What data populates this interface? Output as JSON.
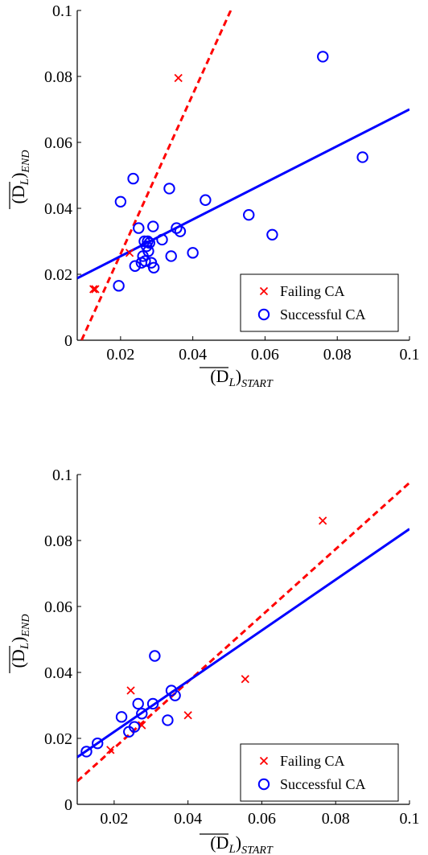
{
  "chart_data": [
    {
      "type": "scatter",
      "xlabel": "(D_L)_START",
      "ylabel": "(D_L)_END",
      "xlim": [
        0.008,
        0.1
      ],
      "ylim": [
        0,
        0.1
      ],
      "xticks": [
        0.02,
        0.04,
        0.06,
        0.08,
        0.1
      ],
      "xtick_labels": [
        "0.02",
        "0.04",
        "0.06",
        "0.08",
        "0.1"
      ],
      "yticks": [
        0,
        0.02,
        0.04,
        0.06,
        0.08,
        0.1
      ],
      "ytick_labels": [
        "0",
        "0.02",
        "0.04",
        "0.06",
        "0.08",
        "0.1"
      ],
      "legend_position": "bottom-right",
      "series": [
        {
          "name": "Failing CA",
          "marker": "x",
          "color": "#ff0000",
          "x": [
            0.0125,
            0.013,
            0.0225,
            0.036
          ],
          "y": [
            0.0155,
            0.0155,
            0.0265,
            0.0795
          ]
        },
        {
          "name": "Successful CA",
          "marker": "o",
          "color": "#0000ff",
          "x": [
            0.0195,
            0.02,
            0.0235,
            0.024,
            0.025,
            0.0258,
            0.0262,
            0.0266,
            0.0268,
            0.0272,
            0.0275,
            0.0277,
            0.028,
            0.0285,
            0.029,
            0.0292,
            0.0315,
            0.0335,
            0.034,
            0.0355,
            0.0365,
            0.04,
            0.0435,
            0.0555,
            0.062,
            0.076,
            0.087
          ],
          "y": [
            0.0165,
            0.042,
            0.049,
            0.0225,
            0.034,
            0.0235,
            0.0255,
            0.03,
            0.024,
            0.0285,
            0.03,
            0.027,
            0.0295,
            0.0235,
            0.0345,
            0.022,
            0.0305,
            0.046,
            0.0255,
            0.034,
            0.033,
            0.0265,
            0.0425,
            0.038,
            0.032,
            0.086,
            0.0555
          ]
        }
      ],
      "fit_lines": [
        {
          "series": "Failing CA",
          "style": "dashed",
          "color": "#ff0000",
          "x": [
            0.0092,
            0.0505
          ],
          "y": [
            0.0,
            0.1
          ]
        },
        {
          "series": "Successful CA",
          "style": "solid",
          "color": "#0000ff",
          "x": [
            0.008,
            0.1
          ],
          "y": [
            0.0188,
            0.07
          ]
        }
      ]
    },
    {
      "type": "scatter",
      "xlabel": "(D_L)_START",
      "ylabel": "(D_L)_END",
      "xlim": [
        0.01,
        0.1
      ],
      "ylim": [
        0,
        0.1
      ],
      "xticks": [
        0.02,
        0.04,
        0.06,
        0.08,
        0.1
      ],
      "xtick_labels": [
        "0.02",
        "0.04",
        "0.06",
        "0.08",
        "0.1"
      ],
      "yticks": [
        0,
        0.02,
        0.04,
        0.06,
        0.08,
        0.1
      ],
      "ytick_labels": [
        "0",
        "0.02",
        "0.04",
        "0.06",
        "0.08",
        "0.1"
      ],
      "legend_position": "bottom-right",
      "series": [
        {
          "name": "Failing CA",
          "marker": "x",
          "color": "#ff0000",
          "x": [
            0.019,
            0.0245,
            0.0275,
            0.04,
            0.0555,
            0.0765
          ],
          "y": [
            0.0165,
            0.0345,
            0.024,
            0.027,
            0.038,
            0.086
          ]
        },
        {
          "name": "Successful CA",
          "marker": "o",
          "color": "#0000ff",
          "x": [
            0.0125,
            0.0155,
            0.022,
            0.024,
            0.0255,
            0.0265,
            0.0275,
            0.0305,
            0.031,
            0.0345,
            0.0355,
            0.0365
          ],
          "y": [
            0.016,
            0.0185,
            0.0265,
            0.022,
            0.0235,
            0.0305,
            0.0275,
            0.0305,
            0.045,
            0.0255,
            0.0345,
            0.033
          ]
        }
      ],
      "fit_lines": [
        {
          "series": "Failing CA",
          "style": "dashed",
          "color": "#ff0000",
          "x": [
            0.01,
            0.1
          ],
          "y": [
            0.007,
            0.0975
          ]
        },
        {
          "series": "Successful CA",
          "style": "solid",
          "color": "#0000ff",
          "x": [
            0.01,
            0.1
          ],
          "y": [
            0.0143,
            0.0835
          ]
        }
      ]
    }
  ],
  "legend": {
    "failing_label": "Failing CA",
    "successful_label": "Successful CA"
  },
  "labels": {
    "x_main": "(D",
    "x_sub_L": "L",
    "x_close": ")",
    "x_sub": "START",
    "y_main": "(D",
    "y_sub_L": "L",
    "y_close": ")",
    "y_sub": "END"
  }
}
